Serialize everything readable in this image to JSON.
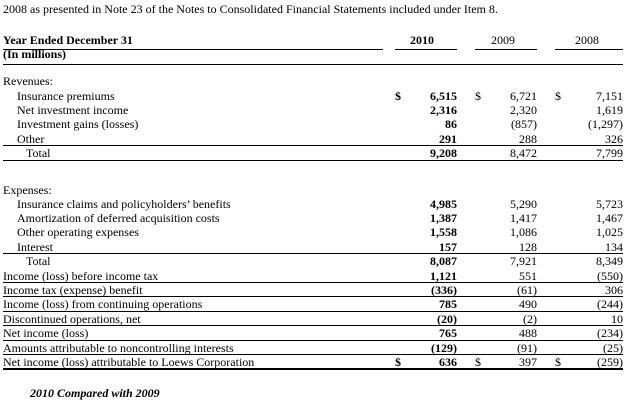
{
  "intro": "2008 as presented in Note 23 of the Notes to Consolidated Financial Statements included under Item 8.",
  "header": {
    "title": "Year Ended December 31",
    "subtitle": "(In millions)",
    "years": [
      "2010",
      "2009",
      "2008"
    ]
  },
  "revenues_heading": "Revenues:",
  "revenues": [
    {
      "label": "Insurance premiums",
      "v2010": "6,515",
      "v2009": "6,721",
      "v2008": "7,151",
      "dollar": true
    },
    {
      "label": "Net investment income",
      "v2010": "2,316",
      "v2009": "2,320",
      "v2008": "1,619"
    },
    {
      "label": "Investment gains (losses)",
      "v2010": "86",
      "v2009": "(857)",
      "v2008": "(1,297)"
    },
    {
      "label": "Other",
      "v2010": "291",
      "v2009": "288",
      "v2008": "326"
    },
    {
      "label": "Total",
      "v2010": "9,208",
      "v2009": "8,472",
      "v2008": "7,799"
    }
  ],
  "expenses_heading": "Expenses:",
  "expenses": [
    {
      "label": "Insurance claims and policyholders’ benefits",
      "v2010": "4,985",
      "v2009": "5,290",
      "v2008": "5,723"
    },
    {
      "label": "Amortization of deferred acquisition costs",
      "v2010": "1,387",
      "v2009": "1,417",
      "v2008": "1,467"
    },
    {
      "label": "Other operating expenses",
      "v2010": "1,558",
      "v2009": "1,086",
      "v2008": "1,025"
    },
    {
      "label": "Interest",
      "v2010": "157",
      "v2009": "128",
      "v2008": "134"
    },
    {
      "label": "Total",
      "v2010": "8,087",
      "v2009": "7,921",
      "v2008": "8,349"
    }
  ],
  "results": [
    {
      "label": "Income (loss) before income tax",
      "v2010": "1,121",
      "v2009": "551",
      "v2008": "(550)"
    },
    {
      "label": "Income tax (expense) benefit",
      "v2010": "(336)",
      "v2009": "(61)",
      "v2008": "306"
    },
    {
      "label": "Income (loss) from continuing operations",
      "v2010": "785",
      "v2009": "490",
      "v2008": "(244)"
    },
    {
      "label": "Discontinued operations, net",
      "v2010": "(20)",
      "v2009": "(2)",
      "v2008": "10"
    },
    {
      "label": "Net income (loss)",
      "v2010": "765",
      "v2009": "488",
      "v2008": "(234)"
    },
    {
      "label": "Amounts attributable to noncontrolling interests",
      "v2010": "(129)",
      "v2009": "(91)",
      "v2008": "(25)"
    },
    {
      "label": "Net income (loss) attributable to Loews Corporation",
      "v2010": "636",
      "v2009": "397",
      "v2008": "(259)",
      "dollar": true
    }
  ],
  "currency_symbol": "$",
  "footer": "2010 Compared with 2009"
}
